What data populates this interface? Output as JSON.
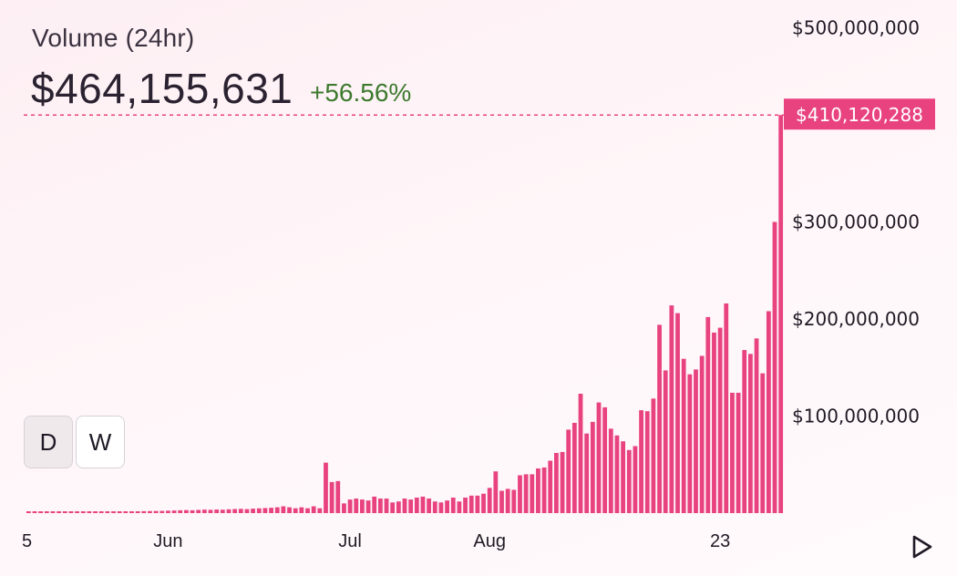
{
  "header": {
    "title": "Volume (24hr)",
    "value": "$464,155,631",
    "change": "+56.56%",
    "change_color": "#3d7a2e"
  },
  "controls": {
    "day_label": "D",
    "week_label": "W",
    "play_icon": "play-icon"
  },
  "colors": {
    "bar": "#e8437f",
    "highlight": "#e8437f"
  },
  "chart_data": {
    "type": "bar",
    "title": "",
    "xlabel": "",
    "ylabel": "",
    "ylim": [
      0,
      500000000
    ],
    "y_ticks": [
      100000000,
      200000000,
      300000000,
      500000000
    ],
    "y_tick_labels": [
      "$100,000,000",
      "$200,000,000",
      "$300,000,000",
      "$500,000,000"
    ],
    "x_tick_labels": [
      "5",
      "Jun",
      "Jul",
      "Aug",
      "23"
    ],
    "highlight_value": 410120288,
    "highlight_label": "$410,120,288",
    "values": [
      1000000,
      1000000,
      1000000,
      1000000,
      1000000,
      1000000,
      1100000,
      1100000,
      1200000,
      1200000,
      1300000,
      1300000,
      1400000,
      1500000,
      1600000,
      1600000,
      1700000,
      1800000,
      1900000,
      2000000,
      2100000,
      2200000,
      2300000,
      2500000,
      2700000,
      2900000,
      3100000,
      2900000,
      3300000,
      3600000,
      3400000,
      3700000,
      3500000,
      3900000,
      4200000,
      4400000,
      4100000,
      4600000,
      4900000,
      5200000,
      5500000,
      6000000,
      7000000,
      6000000,
      5000000,
      6000000,
      5000000,
      7000000,
      5000000,
      52000000,
      32000000,
      33000000,
      10000000,
      14000000,
      15000000,
      14000000,
      13000000,
      17000000,
      15000000,
      15000000,
      11000000,
      12000000,
      15000000,
      14000000,
      16000000,
      17000000,
      15000000,
      12000000,
      11000000,
      13000000,
      16000000,
      12000000,
      16000000,
      18000000,
      18000000,
      20000000,
      26000000,
      43000000,
      23000000,
      25000000,
      24000000,
      39000000,
      40000000,
      40000000,
      46000000,
      47000000,
      54000000,
      62000000,
      63000000,
      86000000,
      93000000,
      123000000,
      82000000,
      94000000,
      114000000,
      109000000,
      87000000,
      80000000,
      74000000,
      65000000,
      69000000,
      106000000,
      105000000,
      118000000,
      194000000,
      147000000,
      214000000,
      206000000,
      159000000,
      143000000,
      148000000,
      162000000,
      202000000,
      186000000,
      191000000,
      216000000,
      124000000,
      124000000,
      168000000,
      164000000,
      180000000,
      144000000,
      208000000,
      300000000,
      410120288
    ]
  }
}
